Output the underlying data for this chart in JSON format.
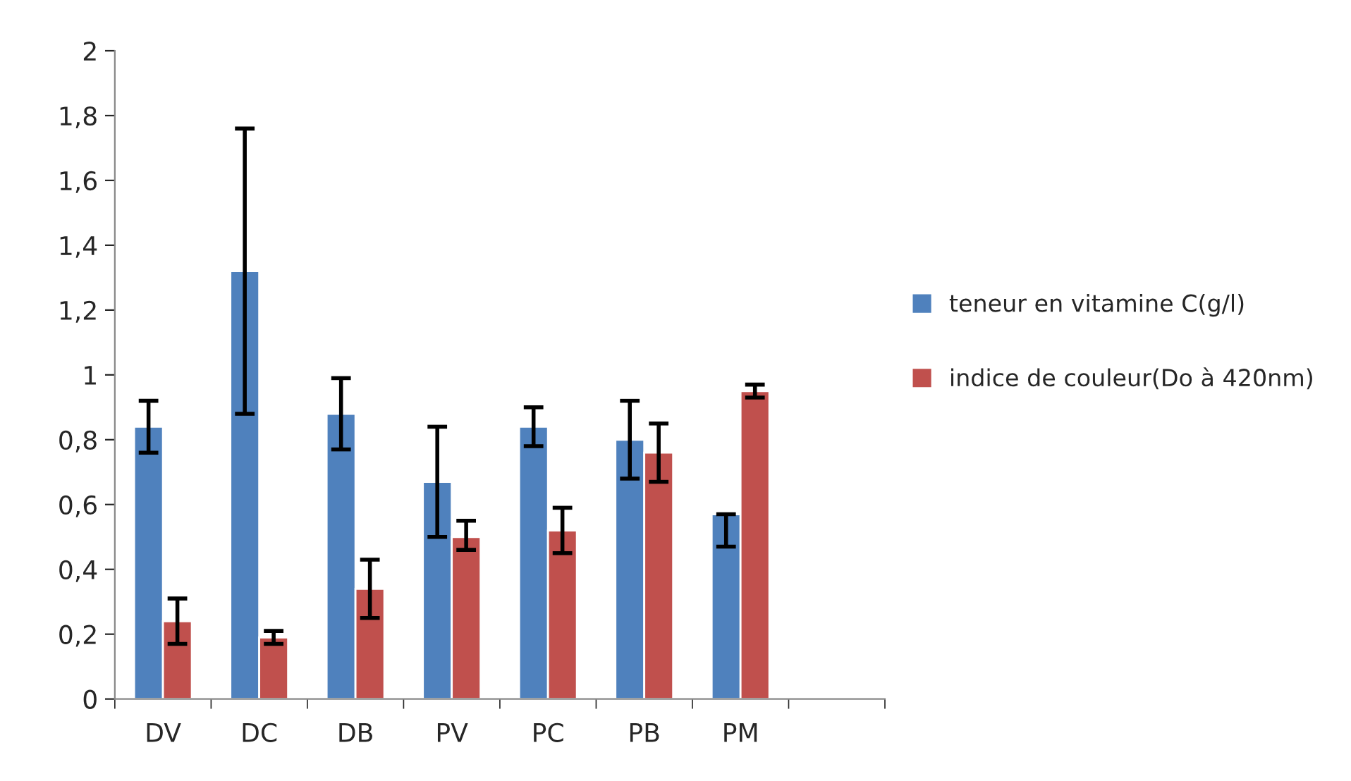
{
  "chart_data": {
    "type": "bar",
    "categories": [
      "DV",
      "DC",
      "DB",
      "PV",
      "PC",
      "PB",
      "PM",
      null
    ],
    "series": [
      {
        "name": "teneur en vitamine C(g/l)",
        "color": "#4f81bd",
        "values": [
          0.84,
          1.32,
          0.88,
          0.67,
          0.84,
          0.8,
          0.57,
          null
        ],
        "errors": [
          [
            0.76,
            0.92
          ],
          [
            0.88,
            1.76
          ],
          [
            0.77,
            0.99
          ],
          [
            0.5,
            0.84
          ],
          [
            0.78,
            0.9
          ],
          [
            0.68,
            0.92
          ],
          [
            0.47,
            0.57
          ],
          null
        ]
      },
      {
        "name": "indice de couleur(Do à 420nm)",
        "color": "#c0504d",
        "values": [
          0.24,
          0.19,
          0.34,
          0.5,
          0.52,
          0.76,
          0.95,
          null
        ],
        "errors": [
          [
            0.17,
            0.31
          ],
          [
            0.17,
            0.21
          ],
          [
            0.25,
            0.43
          ],
          [
            0.46,
            0.55
          ],
          [
            0.45,
            0.59
          ],
          [
            0.67,
            0.85
          ],
          [
            0.93,
            0.97
          ],
          null
        ]
      }
    ],
    "ylim": [
      0,
      2
    ],
    "yticks": [
      0,
      {
        "value": 0.2,
        "label": "0,2"
      },
      {
        "value": 0.4,
        "label": "0,4"
      },
      {
        "value": 0.6,
        "label": "0,6"
      },
      {
        "value": 0.8,
        "label": "0,8"
      },
      1,
      {
        "value": 1.2,
        "label": "1,2"
      },
      {
        "value": 1.4,
        "label": "1,4"
      },
      {
        "value": 1.6,
        "label": "1,6"
      },
      {
        "value": 1.8,
        "label": "1,8"
      },
      2
    ],
    "grid": false,
    "legend": "right"
  }
}
